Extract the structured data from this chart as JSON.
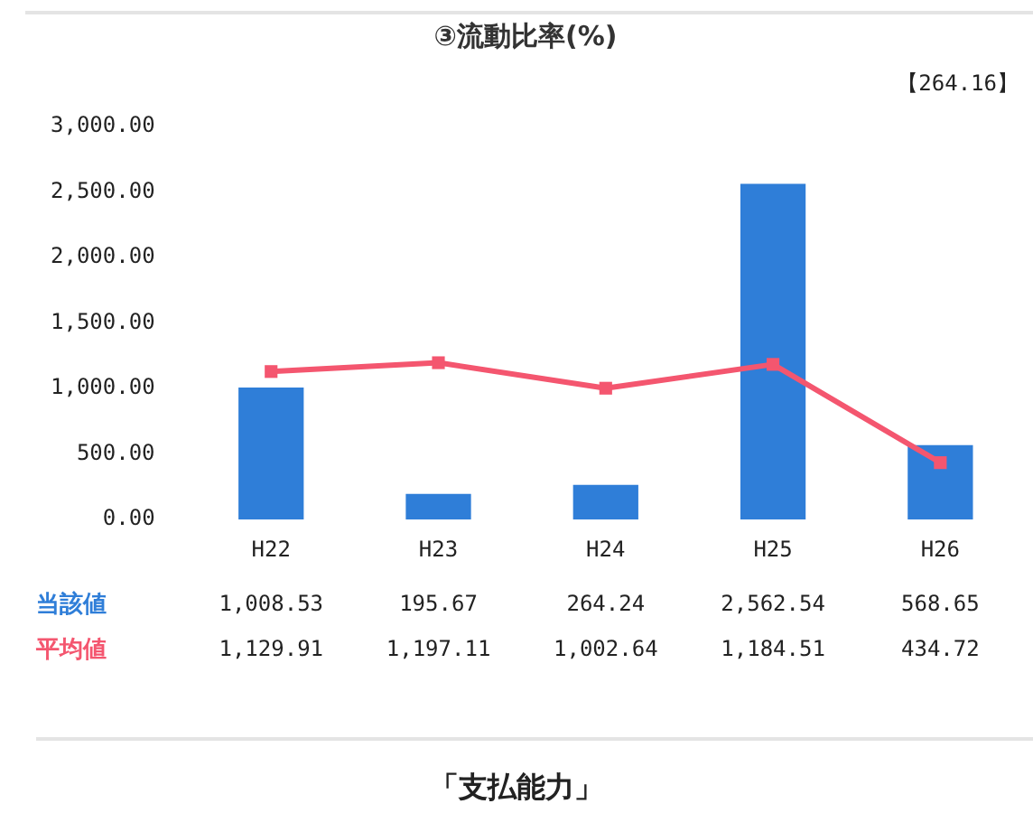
{
  "chart_data": {
    "type": "bar",
    "title": "③流動比率(%)",
    "categories": [
      "H22",
      "H23",
      "H24",
      "H25",
      "H26"
    ],
    "series": [
      {
        "name": "当該値",
        "color": "#2f7ed8",
        "values": [
          1008.53,
          195.67,
          264.24,
          2562.54,
          568.65
        ],
        "value_labels": [
          "1,008.53",
          "195.67",
          "264.24",
          "2,562.54",
          "568.65"
        ]
      },
      {
        "name": "平均値",
        "type": "line",
        "color": "#f4566f",
        "values": [
          1129.91,
          1197.11,
          1002.64,
          1184.51,
          434.72
        ],
        "value_labels": [
          "1,129.91",
          "1,197.11",
          "1,002.64",
          "1,184.51",
          "434.72"
        ]
      }
    ],
    "ylim": [
      0,
      3000
    ],
    "yticks": [
      {
        "value": 0,
        "label": "0.00"
      },
      {
        "value": 500,
        "label": "500.00"
      },
      {
        "value": 1000,
        "label": "1,000.00"
      },
      {
        "value": 1500,
        "label": "1,500.00"
      },
      {
        "value": 2000,
        "label": "2,000.00"
      },
      {
        "value": 2500,
        "label": "2,500.00"
      },
      {
        "value": 3000,
        "label": "3,000.00"
      }
    ],
    "marker": "square",
    "grid": false,
    "legend": false,
    "annotations": [
      "【264.16】",
      "「支払能力」"
    ]
  }
}
